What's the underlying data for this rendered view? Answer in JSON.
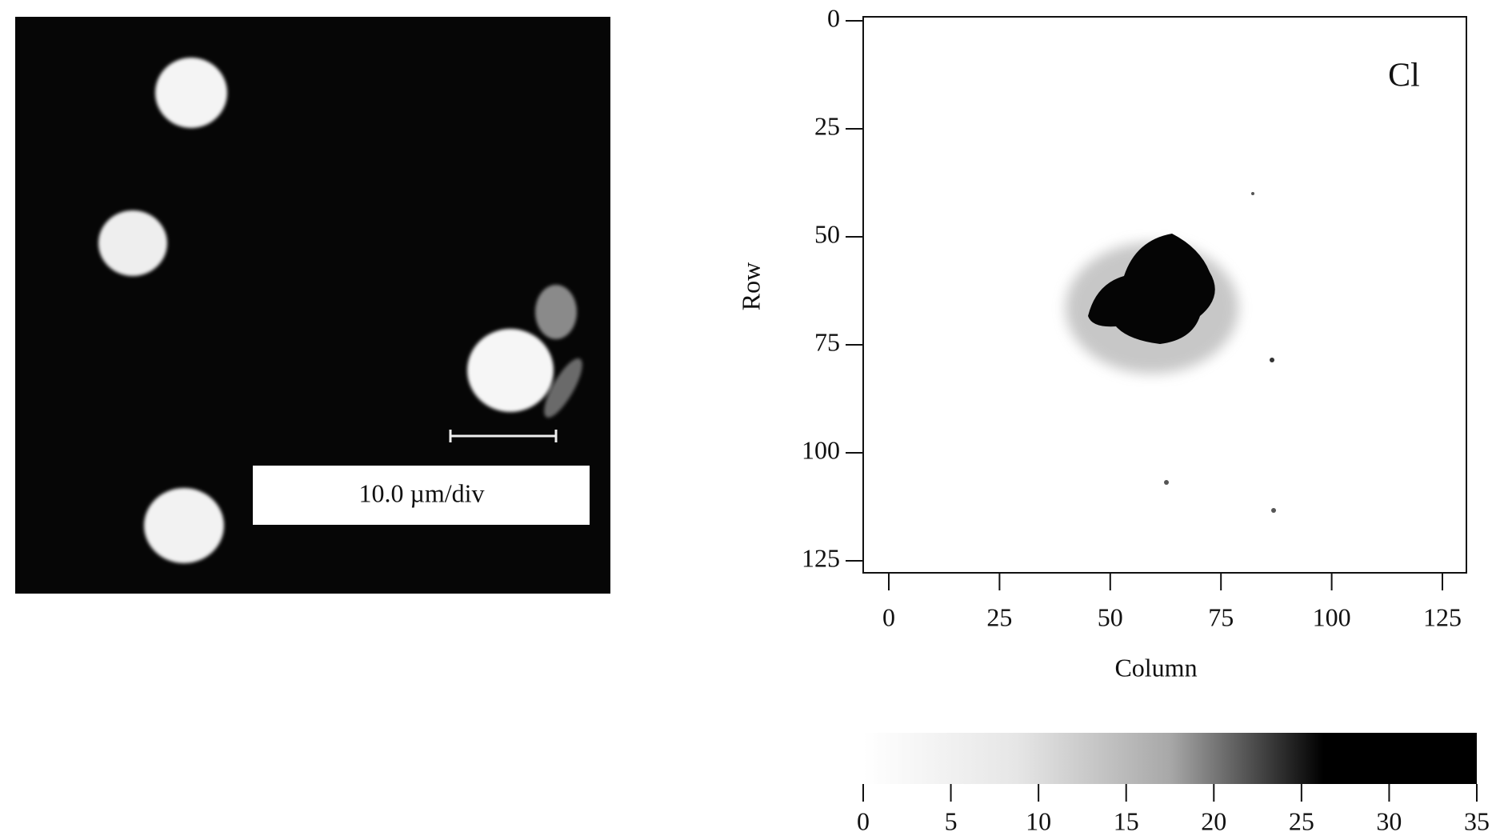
{
  "chart_data": [
    {
      "type": "image",
      "annotation": "10.0 µm/div"
    },
    {
      "type": "heatmap",
      "annotation": "Cl",
      "xlabel": "Column",
      "ylabel": "Row",
      "xlim": [
        0,
        125
      ],
      "xticks": [
        0,
        25,
        50,
        75,
        100,
        125
      ],
      "ylim": [
        0,
        125
      ],
      "yticks": [
        0,
        25,
        50,
        75,
        100,
        125
      ],
      "y_inverted": true,
      "colorbar": {
        "clim": [
          0,
          35
        ],
        "ticks": [
          0,
          5,
          10,
          15,
          20,
          25,
          30,
          35
        ],
        "colors": [
          "#ffffff",
          "#e6e6e6",
          "#a8a8a8",
          "#000000",
          "#000000"
        ]
      }
    }
  ]
}
